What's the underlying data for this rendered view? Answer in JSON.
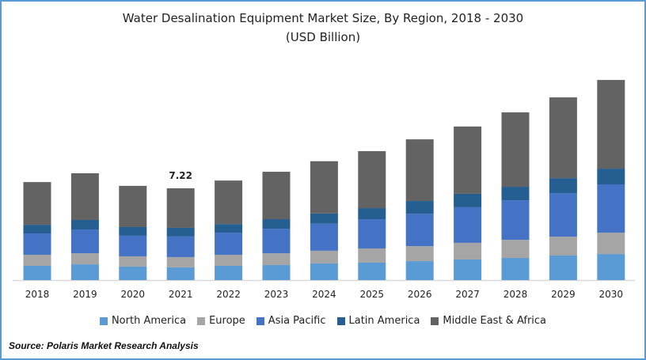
{
  "chart_data": {
    "type": "bar",
    "stacked": true,
    "title": "Water Desalination Equipment Market Size, By Region, 2018 - 2030",
    "subtitle": "(USD Billion)",
    "categories": [
      "2018",
      "2019",
      "2020",
      "2021",
      "2022",
      "2023",
      "2024",
      "2025",
      "2026",
      "2027",
      "2028",
      "2029",
      "2030"
    ],
    "series": [
      {
        "name": "North America",
        "color": "#5b9bd5",
        "values": [
          1.12,
          1.24,
          1.06,
          1.0,
          1.12,
          1.18,
          1.31,
          1.37,
          1.49,
          1.62,
          1.74,
          1.93,
          2.05
        ]
      },
      {
        "name": "Europe",
        "color": "#a5a5a5",
        "values": [
          0.87,
          0.87,
          0.81,
          0.81,
          0.87,
          0.93,
          1.0,
          1.12,
          1.18,
          1.31,
          1.43,
          1.49,
          1.68
        ]
      },
      {
        "name": "Asia Pacific",
        "color": "#4472c4",
        "values": [
          1.68,
          1.87,
          1.62,
          1.62,
          1.74,
          1.93,
          2.12,
          2.3,
          2.55,
          2.8,
          3.11,
          3.42,
          3.8
        ]
      },
      {
        "name": "Latin America",
        "color": "#255e91",
        "values": [
          0.68,
          0.75,
          0.68,
          0.68,
          0.68,
          0.75,
          0.81,
          0.87,
          1.0,
          1.06,
          1.06,
          1.18,
          1.24
        ]
      },
      {
        "name": "Middle East & Africa",
        "color": "#636363",
        "values": [
          3.36,
          3.67,
          3.24,
          3.11,
          3.42,
          3.73,
          4.11,
          4.48,
          4.85,
          5.29,
          5.85,
          6.35,
          6.97
        ]
      }
    ],
    "data_labels": [
      {
        "category": "2021",
        "text": "7.22"
      }
    ],
    "ylim": [
      0,
      16.5
    ],
    "grid": false,
    "legend": "bottom",
    "xlabel": "",
    "ylabel": ""
  },
  "source": "Source: Polaris  Market Research Analysis"
}
